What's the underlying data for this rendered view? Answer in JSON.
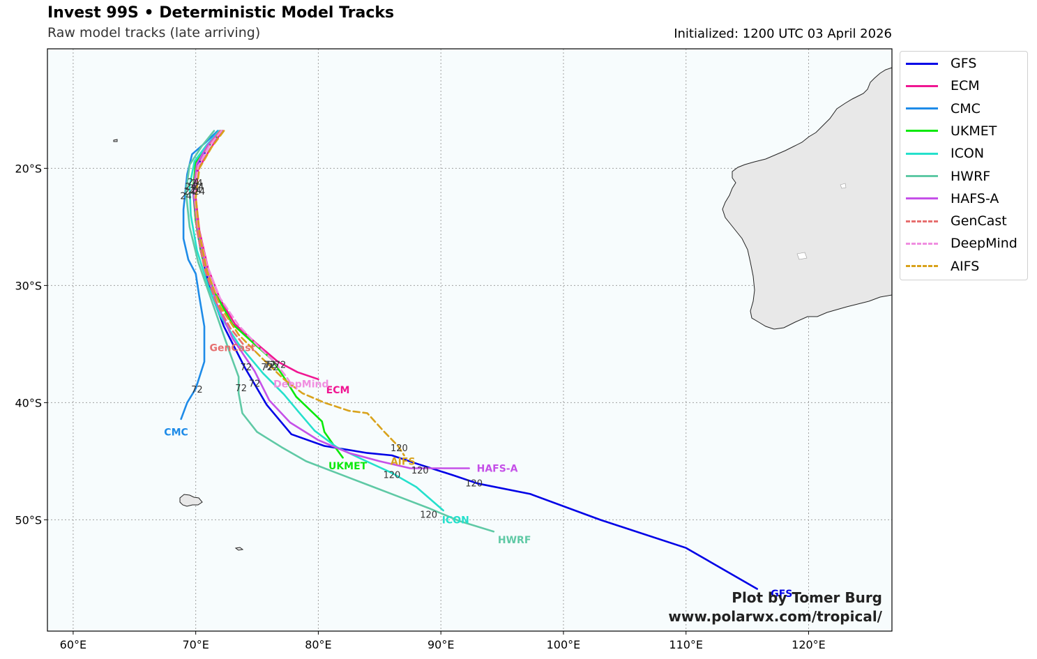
{
  "header": {
    "title": "Invest 99S • Deterministic Model Tracks",
    "subtitle": "Raw model tracks (late arriving)",
    "initialized": "Initialized: 1200 UTC 03 April 2026"
  },
  "credit": {
    "line1": "Plot by Tomer Burg",
    "line2": "www.polarwx.com/tropical/"
  },
  "colors": {
    "ocean": "#f7fcfd",
    "land": "#e8e8e8",
    "grid": "#a0a0a0"
  },
  "map_data": {
    "lon_range": [
      57.9,
      126.8
    ],
    "lat_range": [
      -59.5,
      -9.8
    ],
    "lon_ticks": [
      {
        "value": 60,
        "label": "60°E"
      },
      {
        "value": 70,
        "label": "70°E"
      },
      {
        "value": 80,
        "label": "80°E"
      },
      {
        "value": 90,
        "label": "90°E"
      },
      {
        "value": 100,
        "label": "100°E"
      },
      {
        "value": 110,
        "label": "110°E"
      },
      {
        "value": 120,
        "label": "120°E"
      }
    ],
    "lat_ticks": [
      {
        "value": -20,
        "label": "20°S"
      },
      {
        "value": -30,
        "label": "30°S"
      },
      {
        "value": -40,
        "label": "40°S"
      },
      {
        "value": -50,
        "label": "50°S"
      }
    ],
    "models": [
      {
        "name": "GFS",
        "color": "#0000e6",
        "dashed": false,
        "track": [
          [
            72.0,
            -16.8
          ],
          [
            71.0,
            -18.2
          ],
          [
            70.1,
            -19.9
          ],
          [
            69.8,
            -22.0
          ],
          [
            70.0,
            -24.5
          ],
          [
            70.4,
            -27.0
          ],
          [
            71.2,
            -30.5
          ],
          [
            72.3,
            -33.5
          ],
          [
            74.0,
            -37.0
          ],
          [
            75.8,
            -40.2
          ],
          [
            77.8,
            -42.7
          ],
          [
            80.5,
            -43.7
          ],
          [
            84.0,
            -44.3
          ],
          [
            86.0,
            -44.5
          ],
          [
            88.0,
            -45.2
          ],
          [
            91.0,
            -46.2
          ],
          [
            93.0,
            -46.9
          ],
          [
            97.3,
            -47.8
          ],
          [
            103.0,
            -50.0
          ],
          [
            110.0,
            -52.4
          ],
          [
            115.8,
            -55.9
          ]
        ],
        "end_label": "GFS",
        "end_lon": 117.8,
        "end_lat": -56.3,
        "hour_labels": [
          {
            "text": "120",
            "lon": 92.7,
            "lat": -46.9
          }
        ]
      },
      {
        "name": "ECM",
        "color": "#f01692",
        "dashed": false,
        "track": [
          [
            72.2,
            -16.8
          ],
          [
            71.2,
            -18.3
          ],
          [
            70.2,
            -20.1
          ],
          [
            70.0,
            -22.5
          ],
          [
            70.3,
            -25.3
          ],
          [
            71.0,
            -28.5
          ],
          [
            72.0,
            -31.2
          ],
          [
            73.2,
            -33.3
          ],
          [
            75.0,
            -35.0
          ],
          [
            76.7,
            -36.5
          ],
          [
            78.3,
            -37.4
          ],
          [
            80.0,
            -38.0
          ]
        ],
        "end_label": "ECM",
        "end_lon": 81.6,
        "end_lat": -38.9,
        "hour_labels": [
          {
            "text": "72",
            "lon": 76.0,
            "lat": -36.8
          }
        ]
      },
      {
        "name": "CMC",
        "color": "#1e8be8",
        "dashed": false,
        "track": [
          [
            71.8,
            -16.8
          ],
          [
            70.8,
            -17.8
          ],
          [
            69.7,
            -18.8
          ],
          [
            69.3,
            -20.5
          ],
          [
            69.0,
            -23.5
          ],
          [
            69.0,
            -26.0
          ],
          [
            69.4,
            -27.8
          ],
          [
            70.0,
            -29.0
          ],
          [
            70.3,
            -31.0
          ],
          [
            70.7,
            -33.5
          ],
          [
            70.7,
            -36.5
          ],
          [
            70.0,
            -38.8
          ],
          [
            69.3,
            -40.0
          ],
          [
            68.8,
            -41.4
          ]
        ],
        "end_label": "CMC",
        "end_lon": 68.4,
        "end_lat": -42.5,
        "hour_labels": [
          {
            "text": "72",
            "lon": 70.1,
            "lat": -38.9
          }
        ]
      },
      {
        "name": "UKMET",
        "color": "#0be90b",
        "dashed": false,
        "track": [
          [
            72.1,
            -16.8
          ],
          [
            71.1,
            -18.0
          ],
          [
            70.0,
            -19.5
          ],
          [
            69.8,
            -21.5
          ],
          [
            70.0,
            -24.5
          ],
          [
            70.5,
            -27.5
          ],
          [
            71.5,
            -30.5
          ],
          [
            73.0,
            -33.3
          ],
          [
            74.8,
            -35.0
          ],
          [
            76.2,
            -36.3
          ],
          [
            77.3,
            -38.0
          ],
          [
            78.2,
            -39.5
          ],
          [
            79.5,
            -40.8
          ],
          [
            80.3,
            -41.6
          ],
          [
            80.5,
            -42.5
          ],
          [
            81.3,
            -43.7
          ],
          [
            82.0,
            -44.7
          ]
        ],
        "end_label": "UKMET",
        "end_lon": 82.4,
        "end_lat": -45.4,
        "hour_labels": [
          {
            "text": "72",
            "lon": 76.1,
            "lat": -36.8
          }
        ]
      },
      {
        "name": "ICON",
        "color": "#25e0cc",
        "dashed": false,
        "track": [
          [
            71.9,
            -16.8
          ],
          [
            70.9,
            -18.0
          ],
          [
            69.9,
            -19.4
          ],
          [
            69.5,
            -21.5
          ],
          [
            69.6,
            -24.0
          ],
          [
            70.1,
            -27.0
          ],
          [
            71.0,
            -30.0
          ],
          [
            72.0,
            -32.6
          ],
          [
            73.5,
            -35.0
          ],
          [
            75.5,
            -37.5
          ],
          [
            77.2,
            -39.3
          ],
          [
            78.4,
            -40.8
          ],
          [
            79.7,
            -42.4
          ],
          [
            81.5,
            -43.8
          ],
          [
            83.5,
            -44.8
          ],
          [
            86.0,
            -46.0
          ],
          [
            88.0,
            -47.2
          ],
          [
            90.2,
            -49.2
          ]
        ],
        "end_label": "ICON",
        "end_lon": 91.2,
        "end_lat": -50.0,
        "hour_labels": [
          {
            "text": "120",
            "lon": 86.0,
            "lat": -46.2
          },
          {
            "text": "120",
            "lon": 89.0,
            "lat": -49.6
          }
        ]
      },
      {
        "name": "HWRF",
        "color": "#5fc9a5",
        "dashed": false,
        "track": [
          [
            71.5,
            -16.8
          ],
          [
            70.5,
            -18.1
          ],
          [
            69.5,
            -19.7
          ],
          [
            69.2,
            -22.0
          ],
          [
            69.5,
            -25.0
          ],
          [
            70.2,
            -28.0
          ],
          [
            71.2,
            -31.0
          ],
          [
            72.2,
            -34.0
          ],
          [
            72.8,
            -35.8
          ],
          [
            73.5,
            -37.8
          ],
          [
            73.5,
            -39.2
          ],
          [
            73.8,
            -40.9
          ],
          [
            75.0,
            -42.5
          ],
          [
            77.0,
            -43.8
          ],
          [
            79.0,
            -45.0
          ],
          [
            81.5,
            -46.0
          ],
          [
            84.0,
            -47.0
          ],
          [
            86.5,
            -48.0
          ],
          [
            89.0,
            -49.0
          ],
          [
            91.5,
            -50.1
          ],
          [
            94.3,
            -51.0
          ]
        ],
        "end_label": "HWRF",
        "end_lon": 96.0,
        "end_lat": -51.7,
        "hour_labels": [
          {
            "text": "72",
            "lon": 73.7,
            "lat": -38.8
          }
        ]
      },
      {
        "name": "HAFS-A",
        "color": "#c550e8",
        "dashed": false,
        "track": [
          [
            72.0,
            -16.8
          ],
          [
            71.0,
            -18.0
          ],
          [
            70.1,
            -19.6
          ],
          [
            69.8,
            -21.8
          ],
          [
            70.1,
            -24.8
          ],
          [
            70.7,
            -28.0
          ],
          [
            71.7,
            -31.5
          ],
          [
            73.0,
            -34.5
          ],
          [
            74.8,
            -37.3
          ],
          [
            76.0,
            -39.8
          ],
          [
            77.7,
            -41.7
          ],
          [
            80.0,
            -43.2
          ],
          [
            82.5,
            -44.3
          ],
          [
            85.0,
            -45.0
          ],
          [
            87.5,
            -45.6
          ],
          [
            90.2,
            -45.6
          ],
          [
            92.3,
            -45.6
          ]
        ],
        "end_label": "HAFS-A",
        "end_lon": 94.6,
        "end_lat": -45.6,
        "hour_labels": [
          {
            "text": "72",
            "lon": 74.8,
            "lat": -38.4
          },
          {
            "text": "120",
            "lon": 88.3,
            "lat": -45.8
          }
        ]
      },
      {
        "name": "GenCast",
        "color": "#e66f6f",
        "dashed": true,
        "track": [
          [
            72.0,
            -16.8
          ],
          [
            71.0,
            -18.2
          ],
          [
            70.1,
            -20.0
          ],
          [
            69.9,
            -22.4
          ],
          [
            70.1,
            -25.3
          ],
          [
            70.7,
            -28.5
          ],
          [
            71.6,
            -31.3
          ],
          [
            72.8,
            -33.6
          ],
          [
            74.0,
            -35.2
          ]
        ],
        "end_label": "GenCast",
        "end_lon": 73.0,
        "end_lat": -35.3,
        "hour_labels": [
          {
            "text": "72",
            "lon": 76.3,
            "lat": -37.0
          }
        ]
      },
      {
        "name": "DeepMind",
        "color": "#f08ee0",
        "dashed": true,
        "track": [
          [
            72.1,
            -16.8
          ],
          [
            71.1,
            -18.1
          ],
          [
            70.2,
            -19.8
          ],
          [
            69.9,
            -22.1
          ],
          [
            70.2,
            -25.0
          ],
          [
            70.9,
            -28.2
          ],
          [
            72.0,
            -31.1
          ],
          [
            73.5,
            -33.4
          ],
          [
            75.2,
            -35.3
          ],
          [
            76.5,
            -36.6
          ],
          [
            77.4,
            -37.8
          ],
          [
            77.9,
            -38.6
          ]
        ],
        "end_label": "DeepMind",
        "end_lon": 78.6,
        "end_lat": -38.4,
        "hour_labels": [
          {
            "text": "72",
            "lon": 75.8,
            "lat": -37.0
          }
        ]
      },
      {
        "name": "AIFS",
        "color": "#d9a21b",
        "dashed": true,
        "track": [
          [
            72.3,
            -16.8
          ],
          [
            71.3,
            -18.2
          ],
          [
            70.3,
            -20.0
          ],
          [
            70.0,
            -22.5
          ],
          [
            70.3,
            -25.5
          ],
          [
            70.9,
            -28.7
          ],
          [
            72.0,
            -31.8
          ],
          [
            73.5,
            -34.2
          ],
          [
            75.5,
            -36.3
          ],
          [
            77.2,
            -38.0
          ],
          [
            78.7,
            -39.2
          ],
          [
            80.5,
            -40.0
          ],
          [
            82.5,
            -40.7
          ],
          [
            84.0,
            -40.9
          ],
          [
            85.3,
            -42.4
          ],
          [
            86.5,
            -43.7
          ],
          [
            87.0,
            -44.5
          ]
        ],
        "end_label": "AIFS",
        "end_lon": 86.9,
        "end_lat": -45.0,
        "hour_labels": [
          {
            "text": "120",
            "lon": 86.6,
            "lat": -43.9
          },
          {
            "text": "72",
            "lon": 76.9,
            "lat": -36.8
          }
        ]
      }
    ],
    "cluster_labels": [
      {
        "text": "24",
        "lon": 69.8,
        "lat": -21.2
      },
      {
        "text": "24",
        "lon": 70.1,
        "lat": -21.3
      },
      {
        "text": "24",
        "lon": 69.6,
        "lat": -21.6
      },
      {
        "text": "24",
        "lon": 70.2,
        "lat": -21.6
      },
      {
        "text": "24",
        "lon": 70.0,
        "lat": -21.9
      },
      {
        "text": "24",
        "lon": 69.5,
        "lat": -22.0
      },
      {
        "text": "24",
        "lon": 70.3,
        "lat": -22.0
      },
      {
        "text": "24",
        "lon": 69.2,
        "lat": -22.4
      },
      {
        "text": "72",
        "lon": 74.1,
        "lat": -37.0
      }
    ]
  }
}
